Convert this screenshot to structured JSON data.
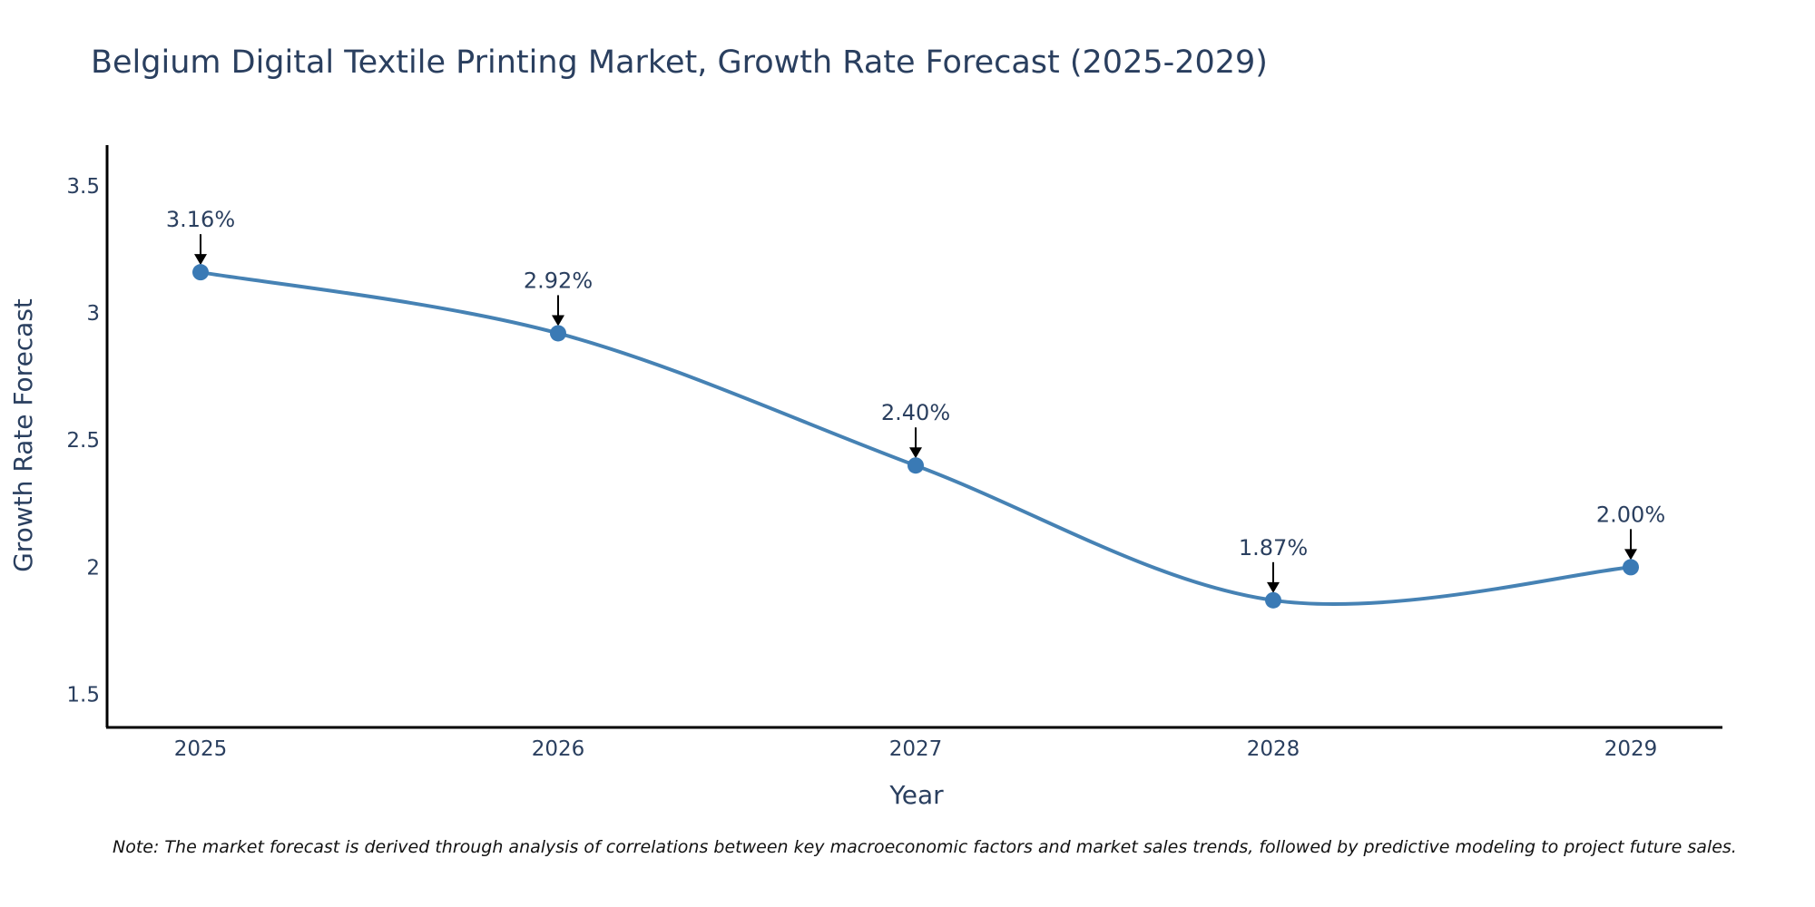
{
  "chart_data": {
    "type": "line",
    "title": "Belgium Digital Textile Printing Market, Growth Rate Forecast (2025-2029)",
    "xlabel": "Year",
    "ylabel": "Growth Rate Forecast",
    "categories": [
      "2025",
      "2026",
      "2027",
      "2028",
      "2029"
    ],
    "series": [
      {
        "name": "Growth Rate Forecast",
        "values": [
          3.16,
          2.92,
          2.4,
          1.87,
          2.0
        ],
        "labels": [
          "3.16%",
          "2.92%",
          "2.40%",
          "1.87%",
          "2.00%"
        ]
      }
    ],
    "ylim": [
      1.37,
      3.66
    ],
    "yticks": [
      1.5,
      2,
      2.5,
      3,
      3.5
    ],
    "ytick_labels": [
      "1.5",
      "2",
      "2.5",
      "3",
      "3.5"
    ],
    "grid": false,
    "line_color": "#4682b4",
    "marker_color": "#3a7ab5",
    "annotation_arrow_color": "#000000",
    "note": "Note: The market forecast is derived through analysis of correlations between key macroeconomic factors and market sales trends, followed by predictive modeling to project future sales."
  }
}
